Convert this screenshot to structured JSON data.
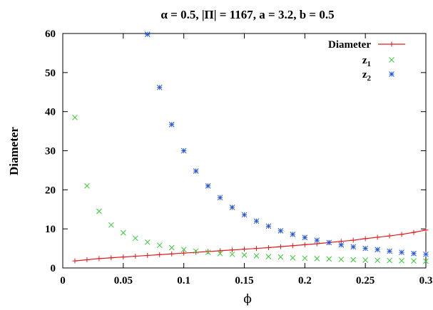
{
  "chart_data": {
    "type": "scatter",
    "title": "α = 0.5, |Π| = 1167, a = 3.2, b = 0.5",
    "xlabel": "ϕ",
    "ylabel": "Diameter",
    "xlim": [
      0,
      0.3
    ],
    "ylim": [
      0,
      60
    ],
    "xticks": [
      "0",
      "0.05",
      "0.1",
      "0.15",
      "0.2",
      "0.25",
      "0.3"
    ],
    "yticks": [
      "0",
      "10",
      "20",
      "30",
      "40",
      "50",
      "60"
    ],
    "xtick_values": [
      0,
      0.05,
      0.1,
      0.15,
      0.2,
      0.25,
      0.3
    ],
    "ytick_values": [
      0,
      10,
      20,
      30,
      40,
      50,
      60
    ],
    "grid": false,
    "legend": "top-right",
    "series": [
      {
        "name": "Diameter",
        "label_main": "Diameter",
        "label_sub": "",
        "style": "line-plus",
        "color": "#e41a1c",
        "x": [
          0.01,
          0.02,
          0.03,
          0.04,
          0.05,
          0.06,
          0.07,
          0.08,
          0.09,
          0.1,
          0.11,
          0.12,
          0.13,
          0.14,
          0.15,
          0.16,
          0.17,
          0.18,
          0.19,
          0.2,
          0.21,
          0.22,
          0.23,
          0.24,
          0.25,
          0.26,
          0.27,
          0.28,
          0.29,
          0.3
        ],
        "y": [
          1.8,
          2.1,
          2.4,
          2.6,
          2.8,
          3.0,
          3.2,
          3.4,
          3.6,
          3.8,
          4.0,
          4.2,
          4.4,
          4.6,
          4.8,
          5.0,
          5.2,
          5.45,
          5.7,
          5.95,
          6.2,
          6.5,
          6.8,
          7.1,
          7.5,
          7.85,
          8.2,
          8.6,
          9.1,
          9.7
        ]
      },
      {
        "name": "z1",
        "label_main": "z",
        "label_sub": "1",
        "style": "cross",
        "color": "#33cc33",
        "x": [
          0.01,
          0.02,
          0.03,
          0.04,
          0.05,
          0.06,
          0.07,
          0.08,
          0.09,
          0.1,
          0.11,
          0.12,
          0.13,
          0.14,
          0.15,
          0.16,
          0.17,
          0.18,
          0.19,
          0.2,
          0.21,
          0.22,
          0.23,
          0.24,
          0.25,
          0.26,
          0.27,
          0.28,
          0.29,
          0.3
        ],
        "y": [
          38.5,
          21.0,
          14.5,
          11.0,
          9.0,
          7.6,
          6.6,
          5.8,
          5.2,
          4.7,
          4.3,
          4.0,
          3.7,
          3.5,
          3.3,
          3.1,
          2.9,
          2.8,
          2.6,
          2.5,
          2.4,
          2.3,
          2.2,
          2.1,
          2.0,
          1.95,
          1.9,
          1.85,
          1.8,
          1.75
        ]
      },
      {
        "name": "z2",
        "label_main": "z",
        "label_sub": "2",
        "style": "star",
        "color": "#2255dd",
        "x": [
          0.07,
          0.08,
          0.09,
          0.1,
          0.11,
          0.12,
          0.13,
          0.14,
          0.15,
          0.16,
          0.17,
          0.18,
          0.19,
          0.2,
          0.21,
          0.22,
          0.23,
          0.24,
          0.25,
          0.26,
          0.27,
          0.28,
          0.29,
          0.3
        ],
        "y": [
          59.8,
          46.2,
          36.7,
          30.0,
          24.8,
          21.0,
          18.0,
          15.5,
          13.6,
          12.0,
          10.7,
          9.5,
          8.6,
          7.8,
          7.1,
          6.5,
          5.9,
          5.4,
          5.0,
          4.7,
          4.3,
          4.0,
          3.7,
          3.5
        ]
      }
    ]
  }
}
